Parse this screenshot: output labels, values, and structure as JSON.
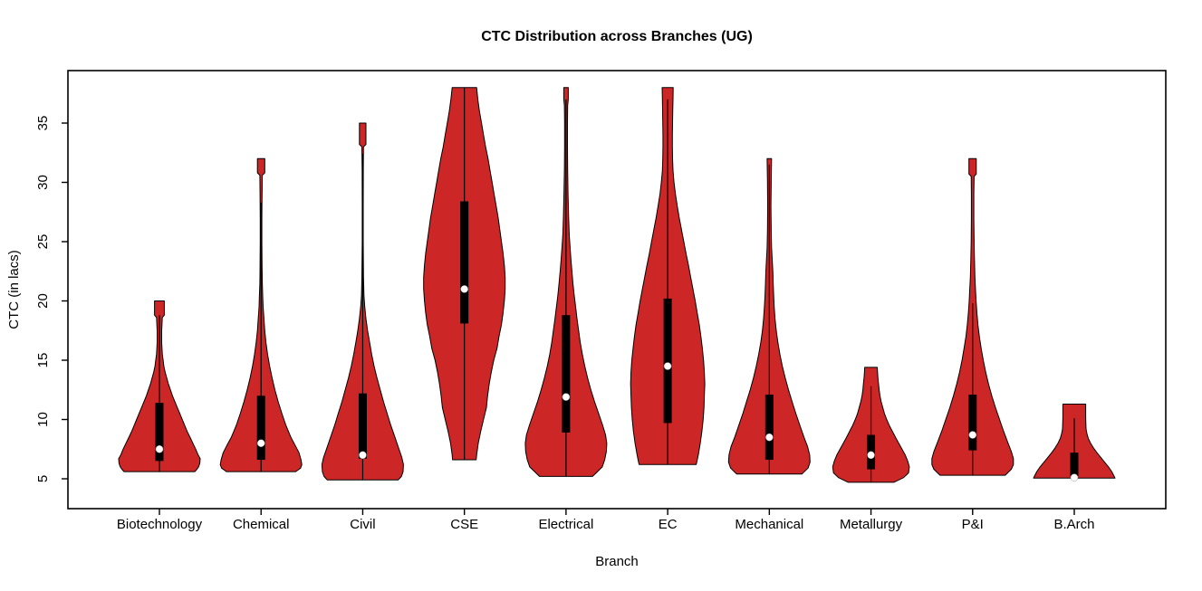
{
  "chart_data": {
    "type": "violin",
    "title": "CTC Distribution across Branches (UG)",
    "xlabel": "Branch",
    "ylabel": "CTC (in lacs)",
    "ylim": [
      2.5,
      39.4
    ],
    "y_ticks": [
      5,
      10,
      15,
      20,
      25,
      30,
      35
    ],
    "grid": false,
    "legend": "none",
    "colors": {
      "violin_fill": "#CD2626",
      "violin_outline": "#000000",
      "box_fill": "#000000",
      "median_dot": "#FFFFFF",
      "frame": "#000000",
      "text": "#000000"
    },
    "categories": [
      "Biotechnology",
      "Chemical",
      "Civil",
      "CSE",
      "Electrical",
      "EC",
      "Mechanical",
      "Metallurgy",
      "P&I",
      "B.Arch"
    ],
    "series": [
      {
        "name": "Biotechnology",
        "min": 5.6,
        "max": 20.0,
        "median": 7.5,
        "q1": 6.5,
        "q3": 11.4,
        "whisker_low": 5.6,
        "whisker_high": 18.8,
        "profile": [
          [
            20,
            0.12
          ],
          [
            18.8,
            0.12
          ],
          [
            18.6,
            0.07
          ],
          [
            17.5,
            0.055
          ],
          [
            16.5,
            0.055
          ],
          [
            15.5,
            0.07
          ],
          [
            15,
            0.09
          ],
          [
            14.5,
            0.11
          ],
          [
            14,
            0.14
          ],
          [
            13.5,
            0.18
          ],
          [
            13,
            0.22
          ],
          [
            12.5,
            0.27
          ],
          [
            12,
            0.32
          ],
          [
            11.5,
            0.38
          ],
          [
            11,
            0.44
          ],
          [
            10.5,
            0.5
          ],
          [
            10,
            0.56
          ],
          [
            9.5,
            0.62
          ],
          [
            9,
            0.68
          ],
          [
            8.5,
            0.75
          ],
          [
            8,
            0.82
          ],
          [
            7.5,
            0.89
          ],
          [
            7,
            0.95
          ],
          [
            6.7,
            1.0
          ],
          [
            6.3,
            0.99
          ],
          [
            6,
            0.96
          ],
          [
            5.8,
            0.92
          ],
          [
            5.6,
            0.87
          ]
        ]
      },
      {
        "name": "Chemical",
        "min": 5.6,
        "max": 32.0,
        "median": 8.0,
        "q1": 6.6,
        "q3": 12.0,
        "whisker_low": 5.6,
        "whisker_high": 28.3,
        "profile": [
          [
            32,
            0.09
          ],
          [
            30.8,
            0.09
          ],
          [
            30.6,
            0.03
          ],
          [
            29,
            0.025
          ],
          [
            27,
            0.02
          ],
          [
            25,
            0.02
          ],
          [
            23,
            0.025
          ],
          [
            21.5,
            0.03
          ],
          [
            20.5,
            0.04
          ],
          [
            19.5,
            0.05
          ],
          [
            18.5,
            0.07
          ],
          [
            17.5,
            0.09
          ],
          [
            16.5,
            0.12
          ],
          [
            15.5,
            0.16
          ],
          [
            14.5,
            0.21
          ],
          [
            13.5,
            0.27
          ],
          [
            12.5,
            0.34
          ],
          [
            11.5,
            0.42
          ],
          [
            10.5,
            0.51
          ],
          [
            9.5,
            0.61
          ],
          [
            8.5,
            0.73
          ],
          [
            7.8,
            0.84
          ],
          [
            7.2,
            0.93
          ],
          [
            6.6,
            0.98
          ],
          [
            6.2,
            1.0
          ],
          [
            5.9,
            0.97
          ],
          [
            5.6,
            0.85
          ]
        ]
      },
      {
        "name": "Civil",
        "min": 4.9,
        "max": 35.0,
        "median": 7.0,
        "q1": 6.7,
        "q3": 12.2,
        "whisker_low": 4.9,
        "whisker_high": 32.4,
        "profile": [
          [
            35,
            0.08
          ],
          [
            33.2,
            0.08
          ],
          [
            33,
            0.02
          ],
          [
            31,
            0.015
          ],
          [
            28,
            0.012
          ],
          [
            25,
            0.012
          ],
          [
            22,
            0.02
          ],
          [
            20.5,
            0.03
          ],
          [
            19.5,
            0.05
          ],
          [
            18.5,
            0.08
          ],
          [
            17.5,
            0.12
          ],
          [
            16.5,
            0.17
          ],
          [
            15.5,
            0.22
          ],
          [
            14.5,
            0.28
          ],
          [
            13.5,
            0.35
          ],
          [
            12.5,
            0.43
          ],
          [
            11.5,
            0.51
          ],
          [
            10.5,
            0.6
          ],
          [
            9.5,
            0.69
          ],
          [
            8.5,
            0.79
          ],
          [
            7.5,
            0.89
          ],
          [
            6.8,
            0.96
          ],
          [
            6.2,
            1.0
          ],
          [
            5.6,
            0.99
          ],
          [
            5.2,
            0.95
          ],
          [
            4.9,
            0.87
          ]
        ]
      },
      {
        "name": "CSE",
        "min": 6.6,
        "max": 38.0,
        "median": 21.0,
        "q1": 18.1,
        "q3": 28.4,
        "whisker_low": 6.6,
        "whisker_high": 38.0,
        "profile": [
          [
            38,
            0.3
          ],
          [
            37,
            0.33
          ],
          [
            36,
            0.37
          ],
          [
            35,
            0.42
          ],
          [
            34,
            0.47
          ],
          [
            33,
            0.52
          ],
          [
            32,
            0.58
          ],
          [
            31,
            0.63
          ],
          [
            30,
            0.68
          ],
          [
            29,
            0.73
          ],
          [
            28,
            0.78
          ],
          [
            27,
            0.83
          ],
          [
            26,
            0.87
          ],
          [
            25,
            0.91
          ],
          [
            24,
            0.95
          ],
          [
            23,
            0.98
          ],
          [
            22,
            1.0
          ],
          [
            21,
            1.0
          ],
          [
            20,
            0.98
          ],
          [
            19,
            0.95
          ],
          [
            18,
            0.91
          ],
          [
            17,
            0.85
          ],
          [
            16,
            0.8
          ],
          [
            15,
            0.72
          ],
          [
            14,
            0.66
          ],
          [
            13,
            0.61
          ],
          [
            12,
            0.57
          ],
          [
            11,
            0.54
          ],
          [
            10,
            0.47
          ],
          [
            9,
            0.4
          ],
          [
            8,
            0.34
          ],
          [
            7,
            0.3
          ],
          [
            6.6,
            0.29
          ]
        ]
      },
      {
        "name": "Electrical",
        "min": 5.2,
        "max": 38.0,
        "median": 11.9,
        "q1": 8.9,
        "q3": 18.8,
        "whisker_low": 5.2,
        "whisker_high": 37.0,
        "profile": [
          [
            38,
            0.055
          ],
          [
            37,
            0.055
          ],
          [
            36.5,
            0.04
          ],
          [
            35,
            0.035
          ],
          [
            33,
            0.035
          ],
          [
            31,
            0.04
          ],
          [
            29,
            0.05
          ],
          [
            27,
            0.065
          ],
          [
            25.5,
            0.08
          ],
          [
            24.5,
            0.1
          ],
          [
            23.5,
            0.12
          ],
          [
            22.5,
            0.145
          ],
          [
            21.5,
            0.17
          ],
          [
            20.5,
            0.2
          ],
          [
            19.5,
            0.235
          ],
          [
            18.5,
            0.27
          ],
          [
            17.5,
            0.31
          ],
          [
            16.5,
            0.35
          ],
          [
            15.5,
            0.4
          ],
          [
            14.5,
            0.46
          ],
          [
            13.5,
            0.53
          ],
          [
            12.5,
            0.61
          ],
          [
            11.5,
            0.7
          ],
          [
            10.5,
            0.8
          ],
          [
            9.5,
            0.9
          ],
          [
            8.7,
            0.97
          ],
          [
            8,
            1.0
          ],
          [
            7.3,
            0.99
          ],
          [
            6.6,
            0.95
          ],
          [
            6,
            0.89
          ],
          [
            5.5,
            0.74
          ],
          [
            5.2,
            0.65
          ]
        ]
      },
      {
        "name": "EC",
        "min": 6.2,
        "max": 38.0,
        "median": 14.5,
        "q1": 9.7,
        "q3": 20.2,
        "whisker_low": 6.2,
        "whisker_high": 37.0,
        "profile": [
          [
            38,
            0.135
          ],
          [
            37,
            0.13
          ],
          [
            36,
            0.125
          ],
          [
            35,
            0.12
          ],
          [
            34,
            0.115
          ],
          [
            33,
            0.115
          ],
          [
            32,
            0.12
          ],
          [
            31,
            0.13
          ],
          [
            30,
            0.155
          ],
          [
            29,
            0.19
          ],
          [
            28,
            0.235
          ],
          [
            27,
            0.285
          ],
          [
            26,
            0.34
          ],
          [
            25,
            0.395
          ],
          [
            24,
            0.45
          ],
          [
            23,
            0.51
          ],
          [
            22,
            0.565
          ],
          [
            21,
            0.62
          ],
          [
            20,
            0.675
          ],
          [
            19,
            0.725
          ],
          [
            18,
            0.775
          ],
          [
            17,
            0.815
          ],
          [
            16,
            0.85
          ],
          [
            15,
            0.88
          ],
          [
            14,
            0.9
          ],
          [
            13,
            0.91
          ],
          [
            12,
            0.9
          ],
          [
            11,
            0.89
          ],
          [
            10,
            0.87
          ],
          [
            9,
            0.84
          ],
          [
            8,
            0.8
          ],
          [
            7,
            0.75
          ],
          [
            6.5,
            0.72
          ],
          [
            6.2,
            0.7
          ]
        ]
      },
      {
        "name": "Mechanical",
        "min": 5.4,
        "max": 32.0,
        "median": 8.5,
        "q1": 6.6,
        "q3": 12.1,
        "whisker_low": 5.4,
        "whisker_high": 31.5,
        "profile": [
          [
            32,
            0.055
          ],
          [
            31,
            0.05
          ],
          [
            30,
            0.045
          ],
          [
            28,
            0.04
          ],
          [
            26,
            0.045
          ],
          [
            24.5,
            0.055
          ],
          [
            23.5,
            0.07
          ],
          [
            22.5,
            0.085
          ],
          [
            21.5,
            0.095
          ],
          [
            20.5,
            0.105
          ],
          [
            19.5,
            0.12
          ],
          [
            18.5,
            0.14
          ],
          [
            17.5,
            0.17
          ],
          [
            16.5,
            0.21
          ],
          [
            15.5,
            0.26
          ],
          [
            14.5,
            0.32
          ],
          [
            13.5,
            0.39
          ],
          [
            12.5,
            0.47
          ],
          [
            11.5,
            0.56
          ],
          [
            10.5,
            0.65
          ],
          [
            9.5,
            0.75
          ],
          [
            8.5,
            0.85
          ],
          [
            7.7,
            0.94
          ],
          [
            7,
            0.99
          ],
          [
            6.4,
            1.0
          ],
          [
            5.9,
            0.95
          ],
          [
            5.4,
            0.8
          ]
        ]
      },
      {
        "name": "Metallurgy",
        "min": 4.7,
        "max": 14.4,
        "median": 7.0,
        "q1": 5.8,
        "q3": 8.7,
        "whisker_low": 4.7,
        "whisker_high": 12.8,
        "profile": [
          [
            14.4,
            0.155
          ],
          [
            14,
            0.16
          ],
          [
            13.5,
            0.17
          ],
          [
            13,
            0.185
          ],
          [
            12.5,
            0.2
          ],
          [
            12,
            0.22
          ],
          [
            11.5,
            0.25
          ],
          [
            11,
            0.29
          ],
          [
            10.5,
            0.33
          ],
          [
            10,
            0.385
          ],
          [
            9.5,
            0.45
          ],
          [
            9,
            0.525
          ],
          [
            8.5,
            0.6
          ],
          [
            8,
            0.68
          ],
          [
            7.5,
            0.76
          ],
          [
            7,
            0.84
          ],
          [
            6.5,
            0.9
          ],
          [
            6,
            0.94
          ],
          [
            5.5,
            0.92
          ],
          [
            5.1,
            0.8
          ],
          [
            4.7,
            0.56
          ]
        ]
      },
      {
        "name": "P&I",
        "min": 5.3,
        "max": 32.0,
        "median": 8.7,
        "q1": 7.4,
        "q3": 12.1,
        "whisker_low": 5.3,
        "whisker_high": 19.8,
        "profile": [
          [
            32,
            0.09
          ],
          [
            30.7,
            0.09
          ],
          [
            30.5,
            0.035
          ],
          [
            29,
            0.03
          ],
          [
            27,
            0.03
          ],
          [
            25,
            0.035
          ],
          [
            23.5,
            0.045
          ],
          [
            22,
            0.055
          ],
          [
            21,
            0.07
          ],
          [
            20,
            0.085
          ],
          [
            19,
            0.105
          ],
          [
            18,
            0.13
          ],
          [
            17,
            0.165
          ],
          [
            16,
            0.21
          ],
          [
            15,
            0.26
          ],
          [
            14,
            0.32
          ],
          [
            13,
            0.39
          ],
          [
            12,
            0.47
          ],
          [
            11,
            0.56
          ],
          [
            10,
            0.66
          ],
          [
            9,
            0.76
          ],
          [
            8,
            0.87
          ],
          [
            7.3,
            0.95
          ],
          [
            6.7,
            1.0
          ],
          [
            6.2,
            1.0
          ],
          [
            5.8,
            0.95
          ],
          [
            5.3,
            0.8
          ]
        ]
      },
      {
        "name": "B.Arch",
        "min": 5.05,
        "max": 11.3,
        "median": 5.1,
        "q1": 5.2,
        "q3": 7.2,
        "whisker_low": 5.05,
        "whisker_high": 10.1,
        "profile": [
          [
            11.3,
            0.28
          ],
          [
            10.8,
            0.28
          ],
          [
            10.2,
            0.28
          ],
          [
            9.6,
            0.285
          ],
          [
            9.2,
            0.29
          ],
          [
            8.8,
            0.31
          ],
          [
            8.4,
            0.345
          ],
          [
            8,
            0.4
          ],
          [
            7.6,
            0.47
          ],
          [
            7.2,
            0.555
          ],
          [
            6.8,
            0.65
          ],
          [
            6.4,
            0.745
          ],
          [
            6,
            0.84
          ],
          [
            5.6,
            0.92
          ],
          [
            5.2,
            0.98
          ],
          [
            5.05,
            1.0
          ]
        ]
      }
    ]
  }
}
